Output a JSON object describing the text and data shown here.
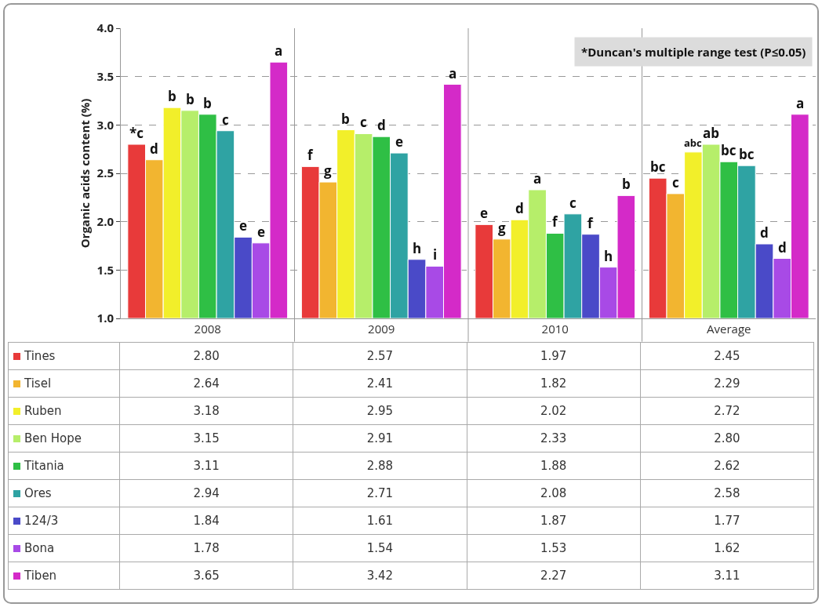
{
  "chart_data": {
    "type": "bar",
    "ylabel": "Organic acids content (%)",
    "categories": [
      "2008",
      "2009",
      "2010",
      "Average"
    ],
    "series": [
      {
        "name": "Tines",
        "color": "#e83a3a",
        "values": [
          2.8,
          2.57,
          1.97,
          2.45
        ],
        "value_labels": [
          "2.80",
          "2.57",
          "1.97",
          "2.45"
        ]
      },
      {
        "name": "Tisel",
        "color": "#f2b530",
        "values": [
          2.64,
          2.41,
          1.82,
          2.29
        ],
        "value_labels": [
          "2.64",
          "2.41",
          "1.82",
          "2.29"
        ]
      },
      {
        "name": "Ruben",
        "color": "#f2ef2a",
        "values": [
          3.18,
          2.95,
          2.02,
          2.72
        ],
        "value_labels": [
          "3.18",
          "2.95",
          "2.02",
          "2.72"
        ]
      },
      {
        "name": "Ben Hope",
        "color": "#b6ee6a",
        "values": [
          3.15,
          2.91,
          2.33,
          2.8
        ],
        "value_labels": [
          "3.15",
          "2.91",
          "2.33",
          "2.80"
        ]
      },
      {
        "name": "Titania",
        "color": "#2fbf45",
        "values": [
          3.11,
          2.88,
          1.88,
          2.62
        ],
        "value_labels": [
          "3.11",
          "2.88",
          "1.88",
          "2.62"
        ]
      },
      {
        "name": "Ores",
        "color": "#2fa3a3",
        "values": [
          2.94,
          2.71,
          2.08,
          2.58
        ],
        "value_labels": [
          "2.94",
          "2.71",
          "2.08",
          "2.58"
        ]
      },
      {
        "name": "124/3",
        "color": "#4a4ac8",
        "values": [
          1.84,
          1.61,
          1.87,
          1.77
        ],
        "value_labels": [
          "1.84",
          "1.61",
          "1.87",
          "1.77"
        ]
      },
      {
        "name": "Bona",
        "color": "#a84ae6",
        "values": [
          1.78,
          1.54,
          1.53,
          1.62
        ],
        "value_labels": [
          "1.78",
          "1.54",
          "1.53",
          "1.62"
        ]
      },
      {
        "name": "Tiben",
        "color": "#d42ac8",
        "values": [
          3.65,
          3.42,
          2.27,
          3.11
        ],
        "value_labels": [
          "3.65",
          "3.42",
          "2.27",
          "3.11"
        ]
      }
    ],
    "ylim": [
      1.0,
      4.0
    ],
    "yticks": [
      {
        "value": 1,
        "label": "1.0"
      },
      1.5,
      {
        "value": 2,
        "label": "2.0"
      },
      2.5,
      {
        "value": 3,
        "label": "3.0"
      },
      3.5,
      {
        "value": 4,
        "label": "4.0"
      }
    ],
    "grid": "y",
    "legend": "bottom",
    "data_labels": true,
    "annotations": [
      "*Duncan's multiple range test (P≤0.05)",
      "*c",
      "d",
      "b",
      "b",
      "b",
      "c",
      "e",
      "e",
      "a",
      "f",
      "g",
      "b",
      "c",
      "d",
      "e",
      "h",
      "i",
      "a",
      "e",
      "g",
      "d",
      "a",
      "f",
      "c",
      "f",
      "h",
      "b",
      "bc",
      "c",
      "abc",
      "ab",
      "bc",
      "bc",
      "d",
      "d",
      "a"
    ]
  }
}
